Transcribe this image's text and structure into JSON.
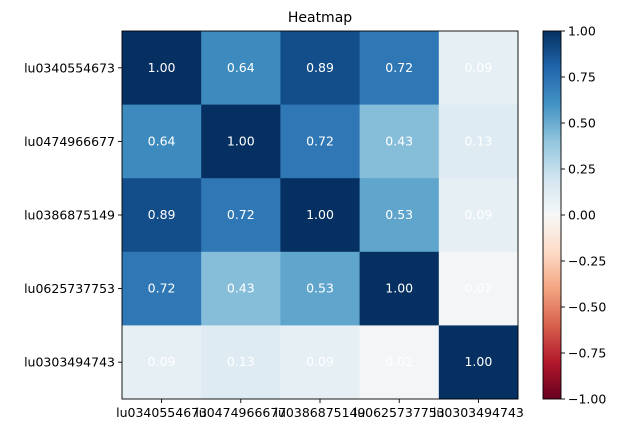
{
  "chart_data": {
    "type": "heatmap",
    "title": "Heatmap",
    "row_labels": [
      "lu0340554673",
      "lu0474966677",
      "lu0386875149",
      "lu0625737753",
      "lu0303494743"
    ],
    "col_labels": [
      "lu0340554673",
      "lu0474966677",
      "lu0386875149",
      "lu0625737753",
      "lu0303494743"
    ],
    "values": [
      [
        1.0,
        0.64,
        0.89,
        0.72,
        0.09
      ],
      [
        0.64,
        1.0,
        0.72,
        0.43,
        0.13
      ],
      [
        0.89,
        0.72,
        1.0,
        0.53,
        0.09
      ],
      [
        0.72,
        0.43,
        0.53,
        1.0,
        0.02
      ],
      [
        0.09,
        0.13,
        0.09,
        0.02,
        1.0
      ]
    ],
    "cell_labels": [
      [
        "1.00",
        "0.64",
        "0.89",
        "0.72",
        "0.09"
      ],
      [
        "0.64",
        "1.00",
        "0.72",
        "0.43",
        "0.13"
      ],
      [
        "0.89",
        "0.72",
        "1.00",
        "0.53",
        "0.09"
      ],
      [
        "0.72",
        "0.43",
        "0.53",
        "1.00",
        "0.02"
      ],
      [
        "0.09",
        "0.13",
        "0.09",
        "0.02",
        "1.00"
      ]
    ],
    "colormap": "RdBu",
    "vmin": -1,
    "vmax": 1,
    "colorbar_ticks": [
      "1.00",
      "0.75",
      "0.50",
      "0.25",
      "0.00",
      "−0.25",
      "−0.50",
      "−0.75",
      "−1.00"
    ],
    "colorbar_tick_values": [
      1.0,
      0.75,
      0.5,
      0.25,
      0.0,
      -0.25,
      -0.5,
      -0.75,
      -1.0
    ],
    "grid": false,
    "legend": "colorbar-right"
  }
}
